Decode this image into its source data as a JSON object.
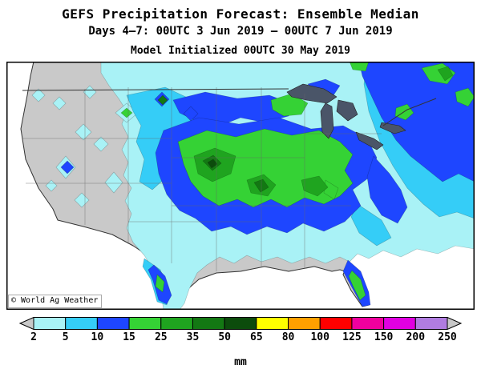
{
  "header": {
    "title": "GEFS Precipitation Forecast: Ensemble Median",
    "subtitle": "Days 4—7: 00UTC 3 Jun 2019 — 00UTC 7 Jun 2019",
    "init_line": "Model Initialized 00UTC 30 May 2019"
  },
  "map": {
    "copyright": "© World Ag Weather",
    "land_color": "#C9C9C9",
    "lake_color": "#4A5568",
    "ocean_color": "#FFFFFF"
  },
  "legend": {
    "unit": "mm",
    "values": [
      "2",
      "5",
      "10",
      "15",
      "25",
      "35",
      "50",
      "65",
      "80",
      "100",
      "125",
      "150",
      "200",
      "250"
    ],
    "segment_colors": [
      "#A9F2F6",
      "#35CDF7",
      "#1E46FF",
      "#35D235",
      "#1FA41F",
      "#137813",
      "#0C4C0C",
      "#FFFF00",
      "#FFA000",
      "#FF0000",
      "#F0009E",
      "#E100E1",
      "#B07CE0"
    ],
    "arrow_color": "#C8C8C8"
  }
}
